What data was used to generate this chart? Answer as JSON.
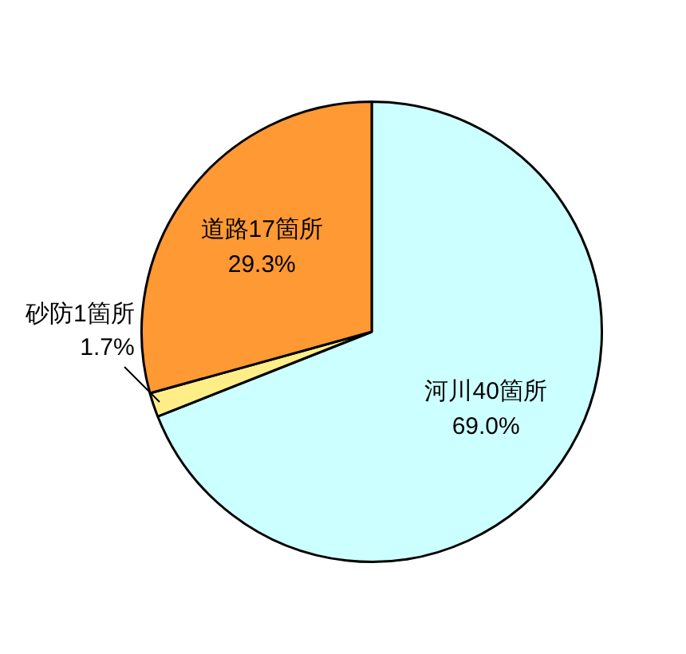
{
  "chart_data": {
    "type": "pie",
    "categories": [
      "河川40箇所",
      "砂防1箇所",
      "道路17箇所"
    ],
    "values": [
      69.0,
      1.7,
      29.3
    ],
    "value_labels": [
      "69.0%",
      "1.7%",
      "29.3%"
    ],
    "colors": [
      "#ccffff",
      "#ffee88",
      "#ff9933"
    ],
    "legend": false
  }
}
